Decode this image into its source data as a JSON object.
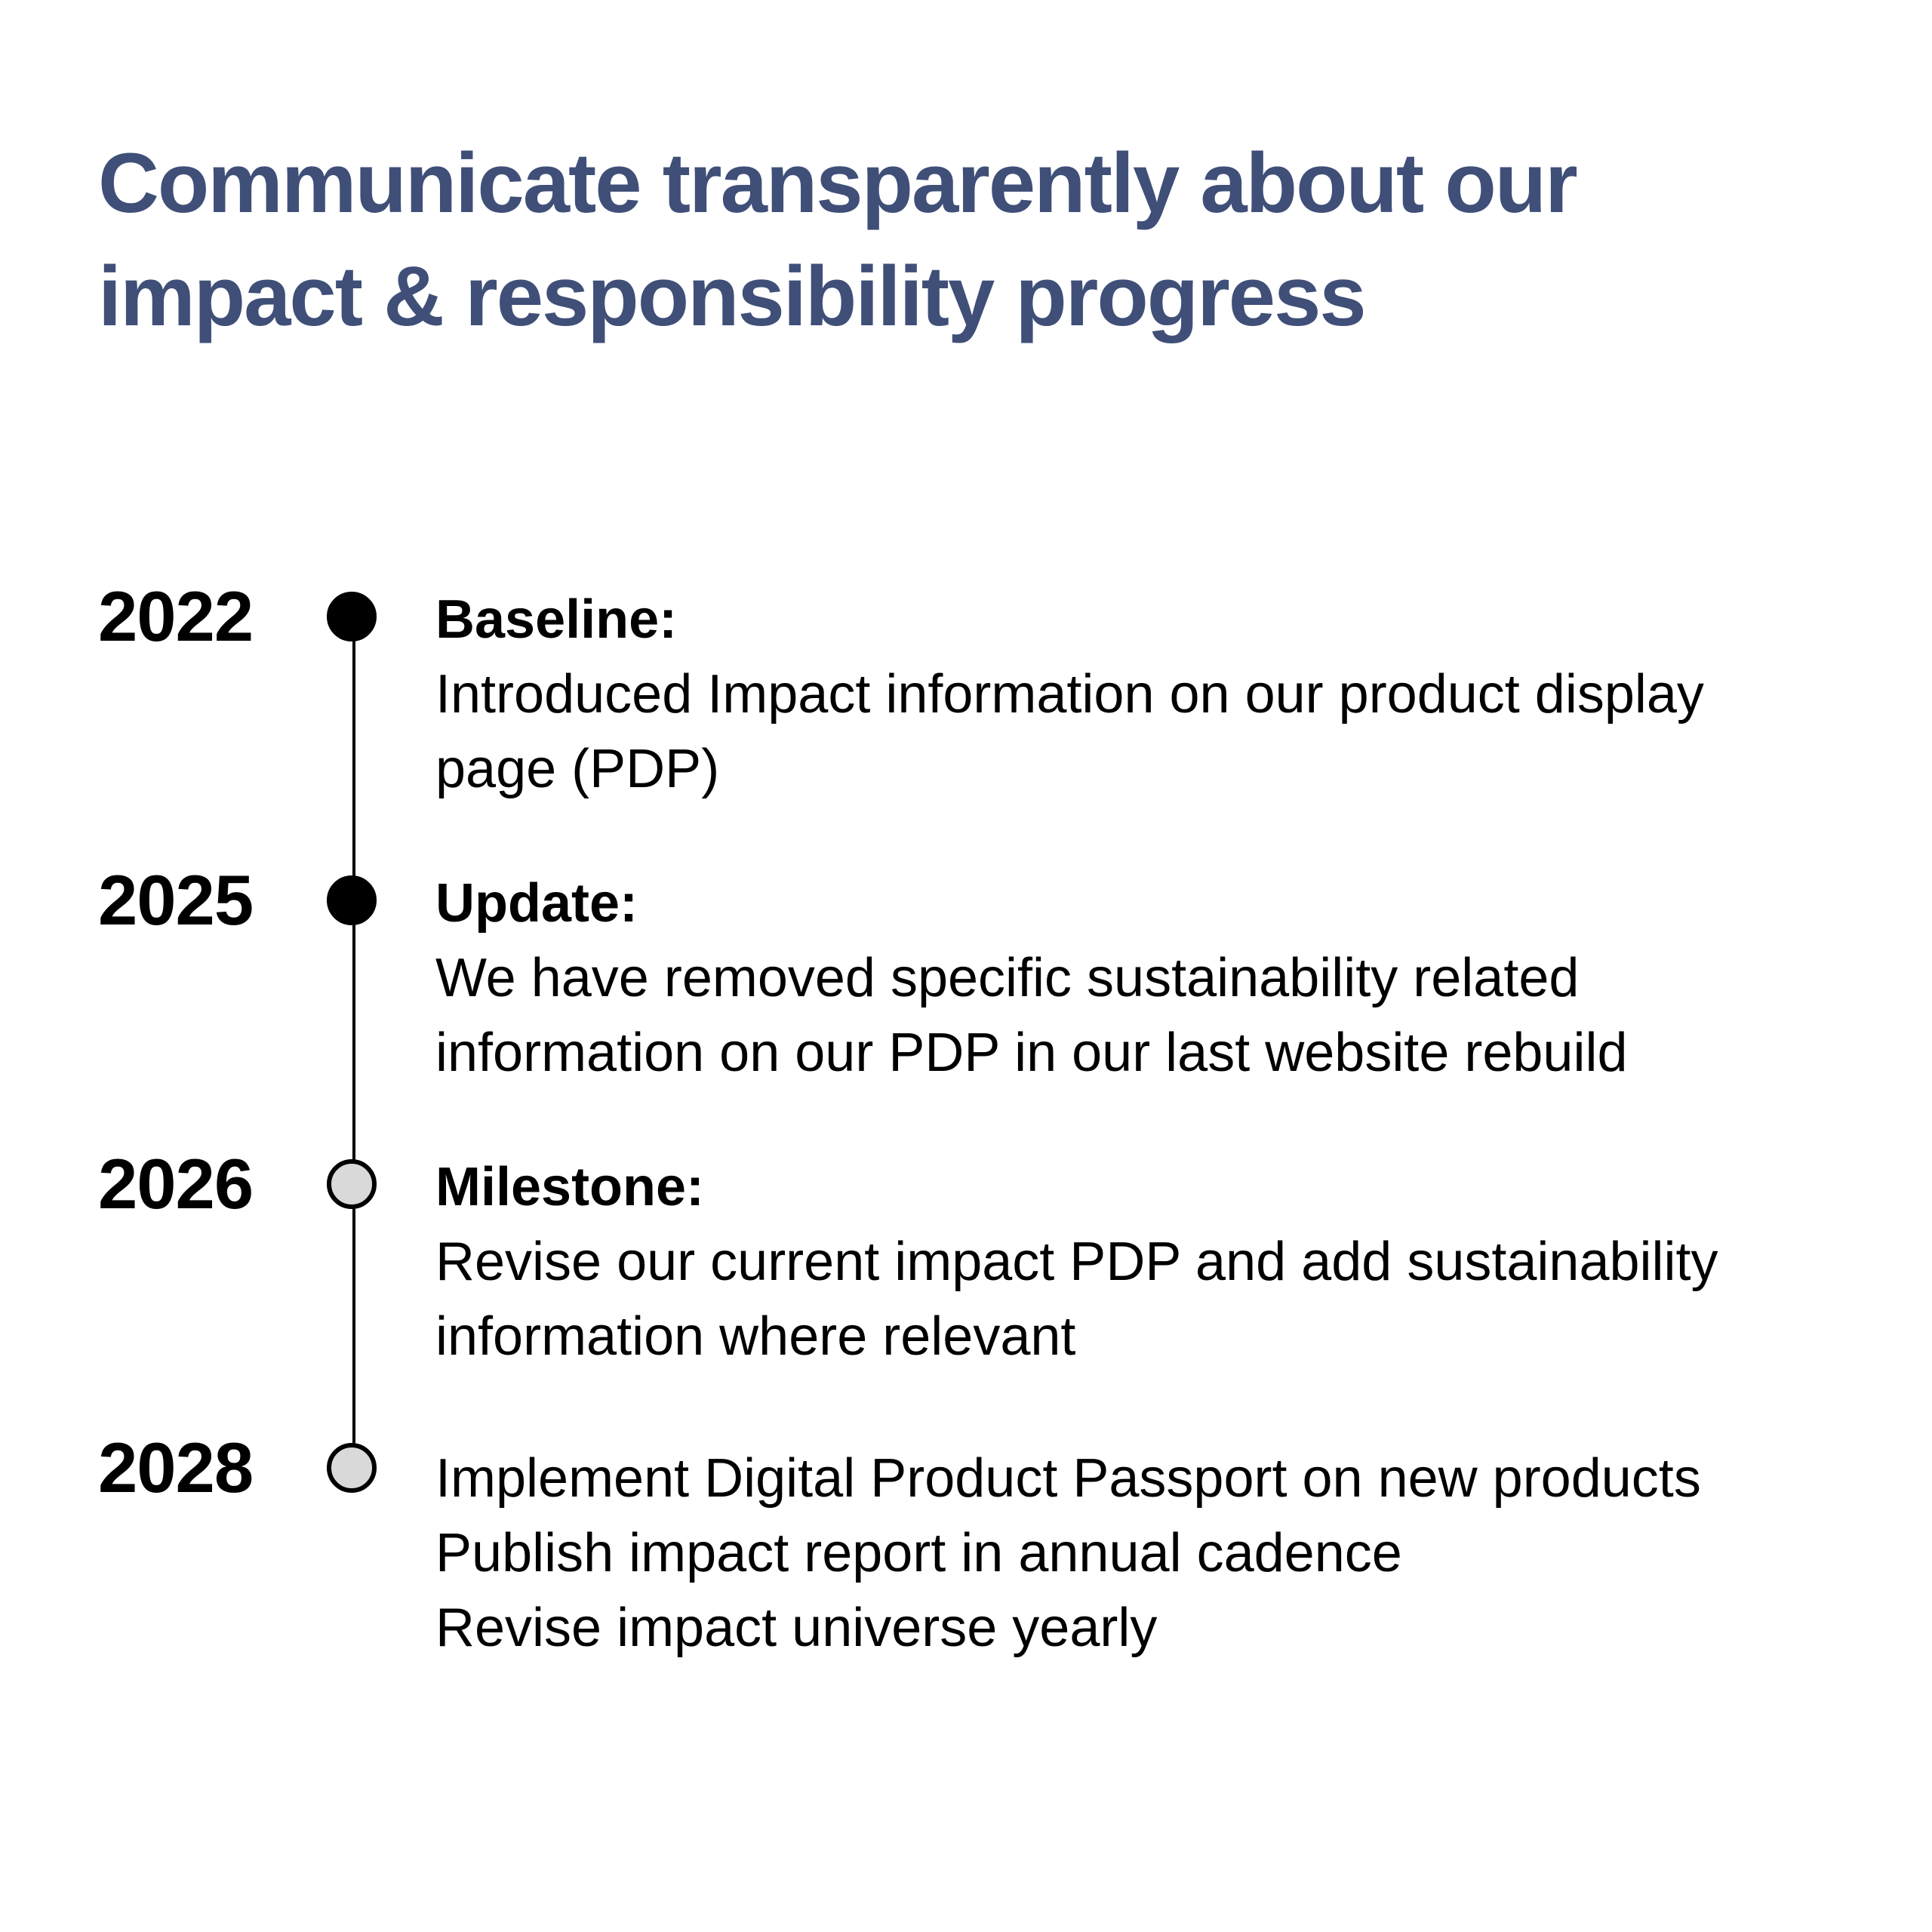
{
  "title": {
    "line1": "Communicate transparently about our",
    "line2": "impact & responsibility progress"
  },
  "timeline": [
    {
      "year": "2022",
      "status": "done",
      "label": "Baseline:",
      "lines": [
        "Introduced Impact information on our product display",
        "page (PDP)"
      ]
    },
    {
      "year": "2025",
      "status": "done",
      "label": "Update:",
      "lines": [
        "We have removed specific sustainability related",
        "information on our PDP in our last website rebuild"
      ]
    },
    {
      "year": "2026",
      "status": "planned",
      "label": "Milestone:",
      "lines": [
        "Revise our current impact PDP and add sustainability",
        "information where relevant"
      ]
    },
    {
      "year": "2028",
      "status": "planned",
      "label": "",
      "lines": [
        "Implement Digital Product Passport on new products",
        "Publish impact report in annual cadence",
        "Revise impact universe yearly"
      ]
    }
  ],
  "colors": {
    "title": "#3f4f78",
    "text": "#000000",
    "marker_done": "#000000",
    "marker_planned": "#d9d9d9"
  }
}
